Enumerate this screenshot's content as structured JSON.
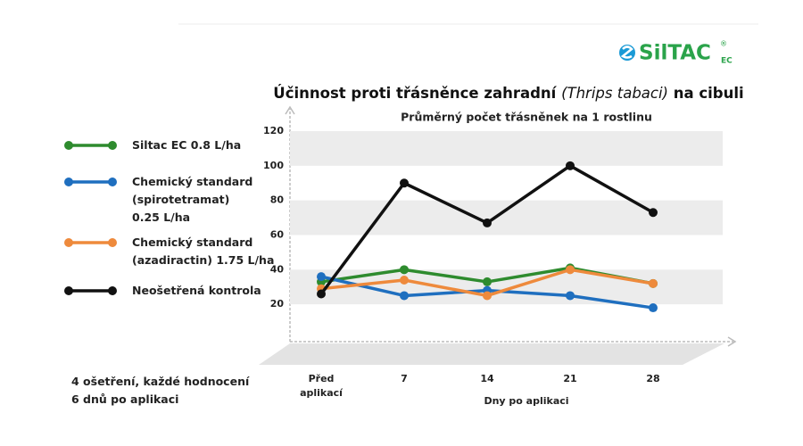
{
  "chart_data": {
    "type": "line",
    "title_parts": [
      "Účinnost proti třásněnce zahradní ",
      "(Thrips tabaci)",
      " na cibuli"
    ],
    "subtitle": "Průměrný počet třásněnek na 1 rostlinu",
    "x_label": "Dny po aplikaci",
    "note": "4 ošetření, každé hodnocení\n6 dnů po aplikaci",
    "logo": {
      "text": "SilTAC",
      "sub": "EC",
      "mark": "®"
    },
    "categories": [
      "Před\naplikací",
      "7",
      "14",
      "21",
      "28"
    ],
    "series": [
      {
        "name": "Siltac EC 0.8 L/ha",
        "color": "#2e8b2e",
        "values": [
          33,
          40,
          33,
          41,
          32
        ]
      },
      {
        "name": "Chemický standard\n(spirotetramat)\n0.25 L/ha",
        "color": "#1f6fbf",
        "values": [
          36,
          25,
          28,
          25,
          18
        ]
      },
      {
        "name": "Chemický standard\n(azadiractin) 1.75 L/ha",
        "color": "#ee8a3c",
        "values": [
          29,
          34,
          25,
          40,
          32
        ]
      },
      {
        "name": "Neošetřená kontrola",
        "color": "#111111",
        "values": [
          26,
          90,
          67,
          100,
          73
        ]
      }
    ],
    "ylim": [
      0,
      120
    ],
    "yticks": [
      20,
      40,
      60,
      80,
      100,
      120
    ],
    "grid": true
  }
}
